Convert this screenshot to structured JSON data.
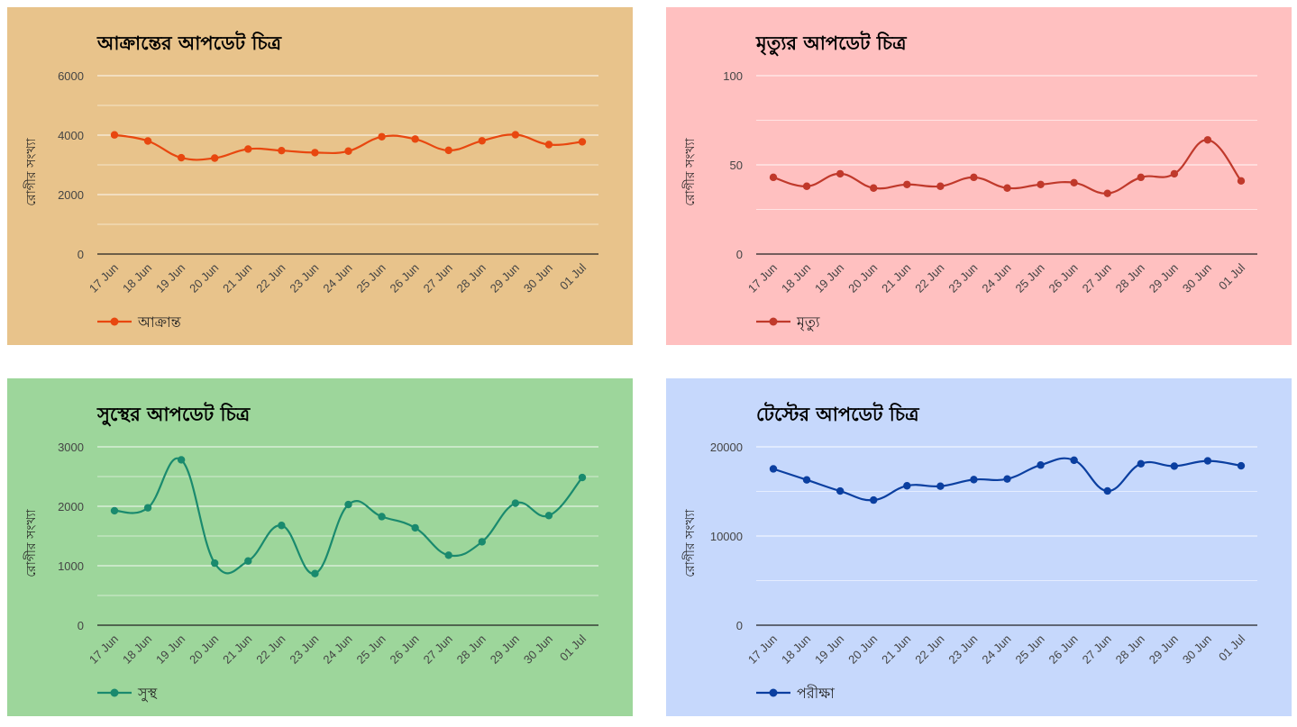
{
  "chart_data": [
    {
      "type": "line",
      "title": "আক্রান্তের আপডেট চিত্র",
      "ylabel": "রোগীর সংখ্যা",
      "xlabel": "",
      "categories": [
        "17 Jun",
        "18 Jun",
        "19 Jun",
        "20 Jun",
        "21 Jun",
        "22 Jun",
        "23 Jun",
        "24 Jun",
        "25 Jun",
        "26 Jun",
        "27 Jun",
        "28 Jun",
        "29 Jun",
        "30 Jun",
        "01 Jul"
      ],
      "series": [
        {
          "name": "আক্রান্ত",
          "values": [
            4008,
            3803,
            3240,
            3227,
            3531,
            3480,
            3412,
            3462,
            3946,
            3868,
            3489,
            3809,
            4014,
            3682,
            3775
          ]
        }
      ],
      "ylim": [
        0,
        6000
      ],
      "yticks": [
        "0",
        "2000",
        "4000",
        "6000"
      ],
      "ytick_values": [
        0,
        2000,
        4000,
        6000
      ],
      "grid_step": 1000,
      "background": "#e8c38b",
      "color": "#e8470f",
      "grid": true,
      "legend": "bottom-left"
    },
    {
      "type": "line",
      "title": "মৃত্যুর আপডেট চিত্র",
      "ylabel": "রোগীর সংখ্যা",
      "xlabel": "",
      "categories": [
        "17 Jun",
        "18 Jun",
        "19 Jun",
        "20 Jun",
        "21 Jun",
        "22 Jun",
        "23 Jun",
        "24 Jun",
        "25 Jun",
        "26 Jun",
        "27 Jun",
        "28 Jun",
        "29 Jun",
        "30 Jun",
        "01 Jul"
      ],
      "series": [
        {
          "name": "মৃত্যু",
          "values": [
            43,
            38,
            45,
            37,
            39,
            38,
            43,
            37,
            39,
            40,
            34,
            43,
            45,
            64,
            41
          ]
        }
      ],
      "ylim": [
        0,
        100
      ],
      "yticks": [
        "0",
        "50",
        "100"
      ],
      "ytick_values": [
        0,
        50,
        100
      ],
      "grid_step": 25,
      "background": "#ffc0c0",
      "color": "#c0392b",
      "grid": true,
      "legend": "bottom-left"
    },
    {
      "type": "line",
      "title": "সুস্থের আপডেট চিত্র",
      "ylabel": "রোগীর সংখ্যা",
      "xlabel": "",
      "categories": [
        "17 Jun",
        "18 Jun",
        "19 Jun",
        "20 Jun",
        "21 Jun",
        "22 Jun",
        "23 Jun",
        "24 Jun",
        "25 Jun",
        "26 Jun",
        "27 Jun",
        "28 Jun",
        "29 Jun",
        "30 Jun",
        "01 Jul"
      ],
      "series": [
        {
          "name": "সুস্থ",
          "values": [
            1925,
            1975,
            2781,
            1044,
            1080,
            1678,
            868,
            2029,
            1826,
            1638,
            1177,
            1403,
            2052,
            1844,
            2484
          ]
        }
      ],
      "ylim": [
        0,
        3000
      ],
      "yticks": [
        "0",
        "1000",
        "2000",
        "3000"
      ],
      "ytick_values": [
        0,
        1000,
        2000,
        3000
      ],
      "grid_step": 500,
      "background": "#9dd69b",
      "color": "#1a8a6e",
      "grid": true,
      "legend": "bottom-left"
    },
    {
      "type": "line",
      "title": "টেস্টের আপডেট চিত্র",
      "ylabel": "রোগীর সংখ্যা",
      "xlabel": "",
      "categories": [
        "17 Jun",
        "18 Jun",
        "19 Jun",
        "20 Jun",
        "21 Jun",
        "22 Jun",
        "23 Jun",
        "24 Jun",
        "25 Jun",
        "26 Jun",
        "27 Jun",
        "28 Jun",
        "29 Jun",
        "30 Jun",
        "01 Jul"
      ],
      "series": [
        {
          "name": "পরীক্ষা",
          "values": [
            17527,
            16292,
            15045,
            14031,
            15632,
            15585,
            16327,
            16396,
            17957,
            18498,
            15053,
            18099,
            17837,
            18426,
            17875
          ]
        }
      ],
      "ylim": [
        0,
        20000
      ],
      "yticks": [
        "0",
        "10000",
        "20000"
      ],
      "ytick_values": [
        0,
        10000,
        20000
      ],
      "grid_step": 5000,
      "background": "#c6d8fc",
      "color": "#0b3fa0",
      "grid": true,
      "legend": "bottom-left"
    }
  ]
}
